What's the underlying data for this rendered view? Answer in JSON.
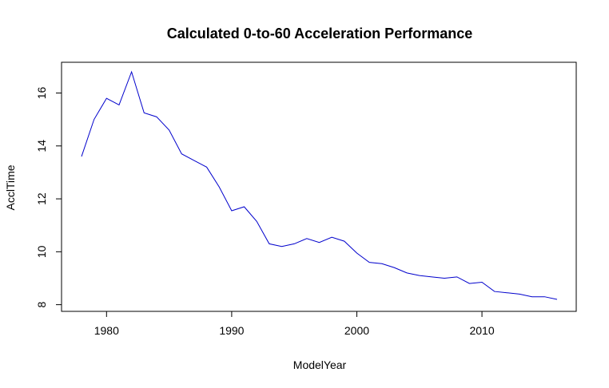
{
  "chart_data": {
    "type": "line",
    "title": "Calculated 0-to-60 Acceleration Performance",
    "xlabel": "ModelYear",
    "ylabel": "AcclTime",
    "xlim": [
      1978,
      2016
    ],
    "ylim": [
      8.2,
      16.8
    ],
    "x_ticks": [
      1980,
      1990,
      2000,
      2010
    ],
    "y_ticks": [
      8,
      10,
      12,
      14,
      16
    ],
    "grid": false,
    "legend": "none",
    "series": [
      {
        "color": "#0000cc",
        "x": [
          1978,
          1979,
          1980,
          1981,
          1982,
          1983,
          1984,
          1985,
          1986,
          1987,
          1988,
          1989,
          1990,
          1991,
          1992,
          1993,
          1994,
          1995,
          1996,
          1997,
          1998,
          1999,
          2000,
          2001,
          2002,
          2003,
          2004,
          2005,
          2006,
          2007,
          2008,
          2009,
          2010,
          2011,
          2012,
          2013,
          2014,
          2015,
          2016
        ],
        "values": [
          13.6,
          15.0,
          15.8,
          15.55,
          16.8,
          15.25,
          15.1,
          14.6,
          13.7,
          13.45,
          13.2,
          12.45,
          11.55,
          11.7,
          11.15,
          10.3,
          10.2,
          10.3,
          10.5,
          10.35,
          10.55,
          10.4,
          9.95,
          9.6,
          9.55,
          9.4,
          9.2,
          9.1,
          9.05,
          9.0,
          9.05,
          8.8,
          8.85,
          8.5,
          8.45,
          8.4,
          8.3,
          8.3,
          8.2
        ]
      }
    ]
  }
}
